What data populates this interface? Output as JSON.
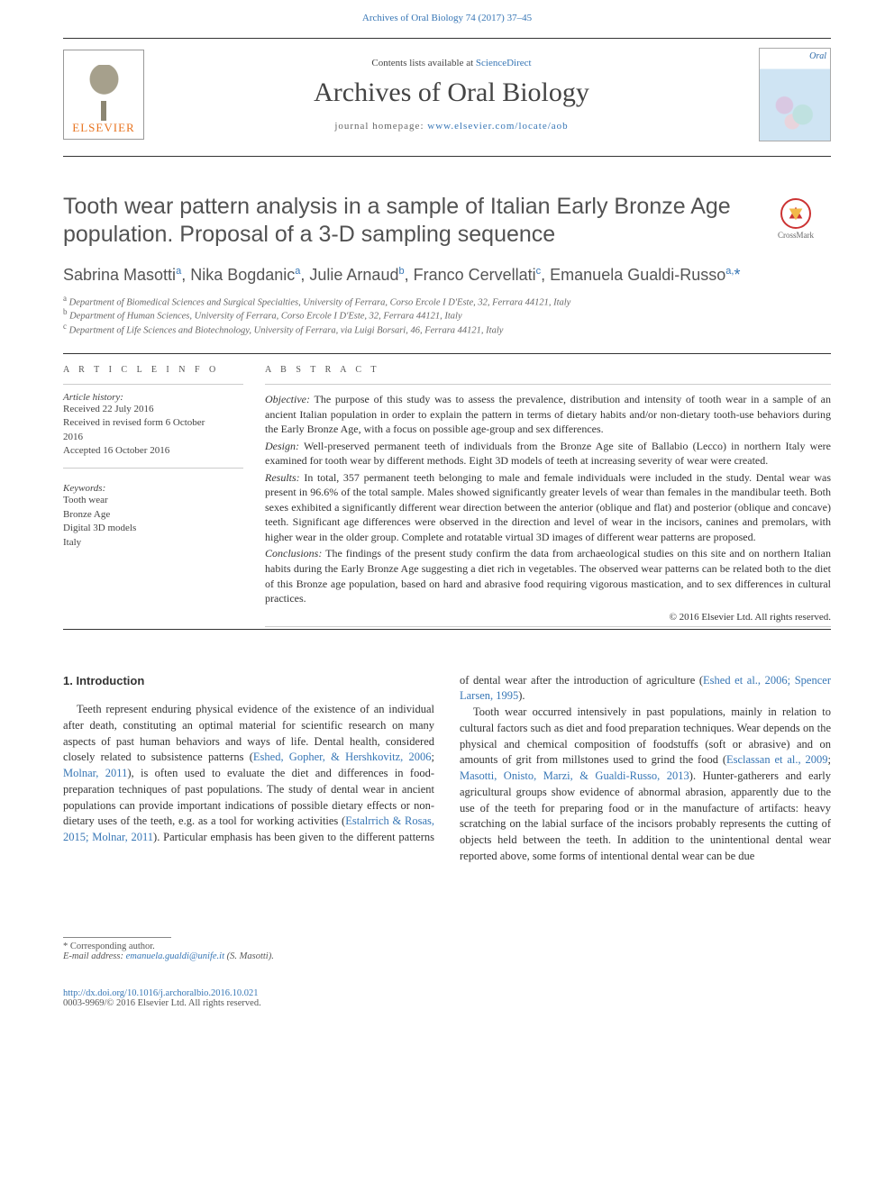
{
  "top_link": "Archives of Oral Biology 74 (2017) 37–45",
  "header": {
    "contents_prefix": "Contents lists available at ",
    "contents_link": "ScienceDirect",
    "journal_title": "Archives of Oral Biology",
    "homepage_prefix": "journal homepage: ",
    "homepage_link": "www.elsevier.com/locate/aob",
    "elsevier_wordmark": "ELSEVIER",
    "cover_title": "Oral"
  },
  "crossmark_label": "CrossMark",
  "article": {
    "title": "Tooth wear pattern analysis in a sample of Italian Early Bronze Age population. Proposal of a 3-D sampling sequence",
    "authors_html": "Sabrina Masotti<sup>a</sup>, Nika Bogdanic<sup>a</sup>, Julie Arnaud<sup>b</sup>, Franco Cervellati<sup>c</sup>, Emanuela Gualdi-Russo<sup>a,</sup><span class='star'>*</span>",
    "affiliations": {
      "a": "Department of Biomedical Sciences and Surgical Specialties, University of Ferrara, Corso Ercole I D'Este, 32, Ferrara 44121, Italy",
      "b": "Department of Human Sciences, University of Ferrara, Corso Ercole I D'Este, 32, Ferrara 44121, Italy",
      "c": "Department of Life Sciences and Biotechnology, University of Ferrara, via Luigi Borsari, 46, Ferrara 44121, Italy"
    }
  },
  "info": {
    "left_heading": "A R T I C L E  I N F O",
    "history_head": "Article history:",
    "history": [
      "Received 22 July 2016",
      "Received in revised form 6 October 2016",
      "Accepted 16 October 2016"
    ],
    "keywords_head": "Keywords:",
    "keywords": [
      "Tooth wear",
      "Bronze Age",
      "Digital 3D models",
      "Italy"
    ],
    "right_heading": "A B S T R A C T",
    "abstract": {
      "objective_label": "Objective:",
      "objective": " The purpose of this study was to assess the prevalence, distribution and intensity of tooth wear in a sample of an ancient Italian population in order to explain the pattern in terms of dietary habits and/or non-dietary tooth-use behaviors during the Early Bronze Age, with a focus on possible age-group and sex differences.",
      "design_label": "Design:",
      "design": " Well-preserved permanent teeth of individuals from the Bronze Age site of Ballabio (Lecco) in northern Italy were examined for tooth wear by different methods. Eight 3D models of teeth at increasing severity of wear were created.",
      "results_label": "Results:",
      "results": " In total, 357 permanent teeth belonging to male and female individuals were included in the study. Dental wear was present in 96.6% of the total sample. Males showed significantly greater levels of wear than females in the mandibular teeth. Both sexes exhibited a significantly different wear direction between the anterior (oblique and flat) and posterior (oblique and concave) teeth. Significant age differences were observed in the direction and level of wear in the incisors, canines and premolars, with higher wear in the older group. Complete and rotatable virtual 3D images of different wear patterns are proposed.",
      "conclusions_label": "Conclusions:",
      "conclusions": " The findings of the present study confirm the data from archaeological studies on this site and on northern Italian habits during the Early Bronze Age suggesting a diet rich in vegetables. The observed wear patterns can be related both to the diet of this Bronze age population, based on hard and abrasive food requiring vigorous mastication, and to sex differences in cultural practices."
    },
    "copyright": "© 2016 Elsevier Ltd. All rights reserved."
  },
  "body": {
    "section_heading": "1. Introduction",
    "p1_a": "Teeth represent enduring physical evidence of the existence of an individual after death, constituting an optimal material for scientific research on many aspects of past human behaviors and ways of life. Dental health, considered closely related to subsistence patterns (",
    "p1_link1": "Eshed, Gopher, & Hershkovitz, 2006",
    "p1_b": "; ",
    "p1_link2": "Molnar, 2011",
    "p1_c": "), is often used to evaluate the diet and differences in food-preparation techniques of past populations. The study of dental wear in ancient populations can provide important indications of possible dietary effects or non-dietary uses of the teeth, e.g. as a tool for working activities (",
    "p1_link3": "Estalrrich & Rosas, 2015; Molnar, 2011",
    "p1_d": "). Particular emphasis has been given to the different patterns of dental wear after the introduction of agriculture (",
    "p1_link4": "Eshed et al., 2006; Spencer Larsen, 1995",
    "p1_e": ").",
    "p2_a": "Tooth wear occurred intensively in past populations, mainly in relation to cultural factors such as diet and food preparation techniques. Wear depends on the physical and chemical composition of foodstuffs (soft or abrasive) and on amounts of grit from millstones used to grind the food (",
    "p2_link1": "Esclassan et al., 2009",
    "p2_b": "; ",
    "p2_link2": "Masotti, Onisto, Marzi, & Gualdi-Russo, 2013",
    "p2_c": "). Hunter-gatherers and early agricultural groups show evidence of abnormal abrasion, apparently due to the use of the teeth for preparing food or in the manufacture of artifacts: heavy scratching on the labial surface of the incisors probably represents the cutting of objects held between the teeth. In addition to the unintentional dental wear reported above, some forms of intentional dental wear can be due"
  },
  "footer": {
    "corr": "* Corresponding author.",
    "email_label": "E-mail address: ",
    "email_link": "emanuela.gualdi@unife.it",
    "email_tail": " (S. Masotti).",
    "doi_link": "http://dx.doi.org/10.1016/j.archoralbio.2016.10.021",
    "issn_line": "0003-9969/© 2016 Elsevier Ltd. All rights reserved."
  },
  "colors": {
    "link": "#3776b5",
    "text": "#333333",
    "muted": "#666666",
    "elsevier_orange": "#e8731f",
    "crossmark_red": "#c33333"
  }
}
